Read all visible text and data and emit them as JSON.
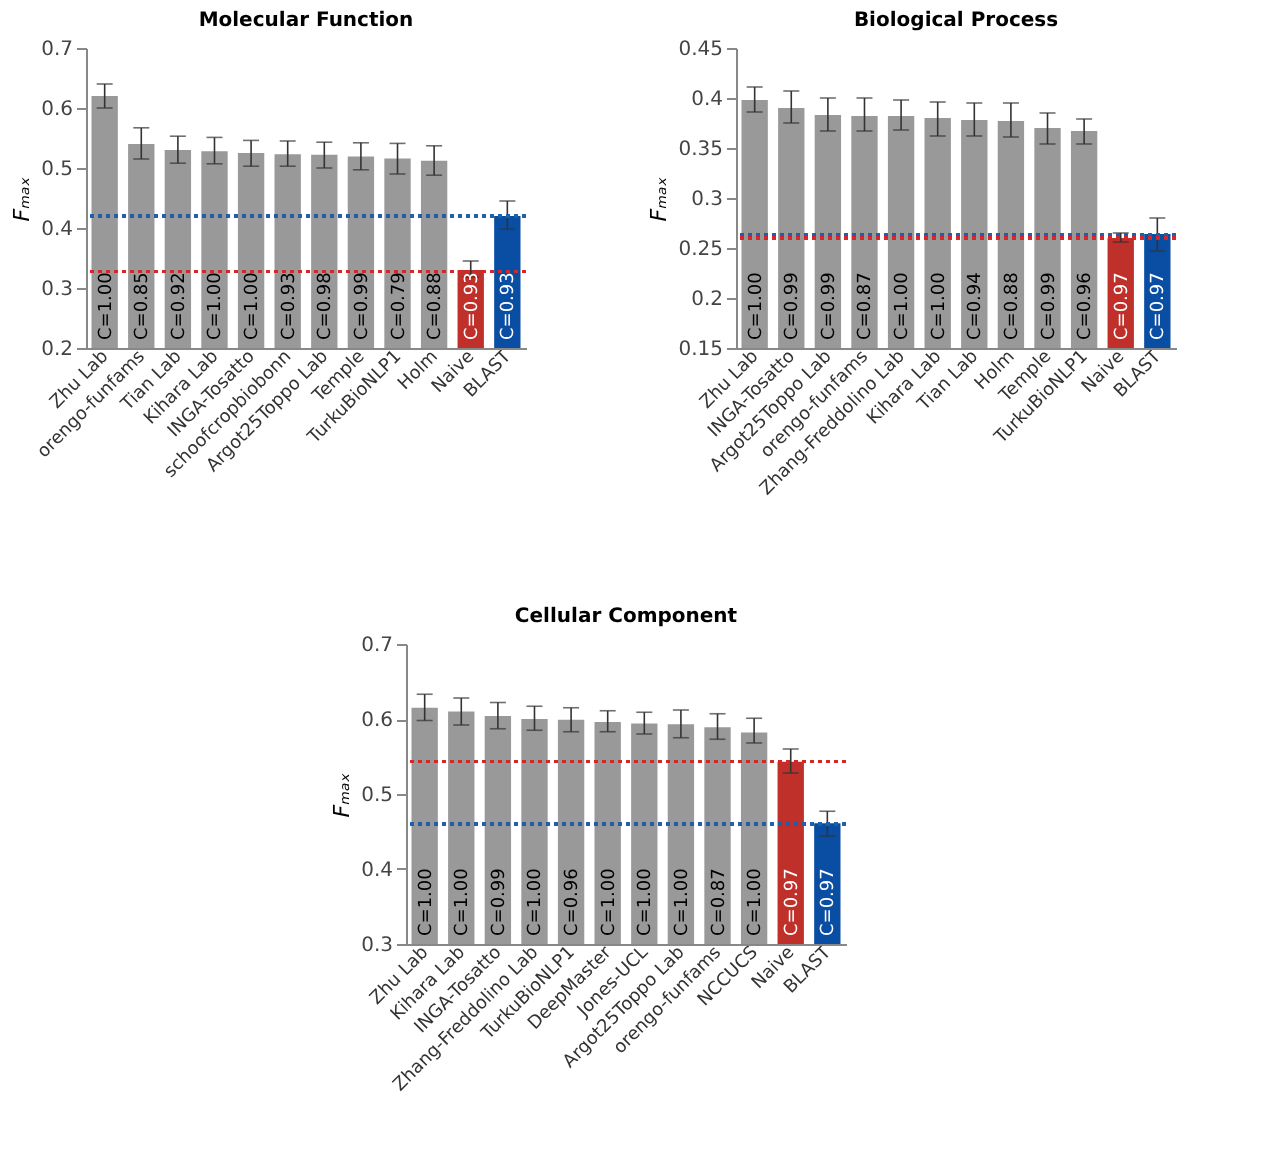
{
  "chart_data": [
    {
      "type": "bar",
      "title": "Molecular Function",
      "ylabel": "Fₘₐₓ",
      "categories": [
        "Zhu Lab",
        "orengo-funfams",
        "Tian Lab",
        "Kihara Lab",
        "INGA-Tosatto",
        "schoofcropbiobonn",
        "Argot25Toppo Lab",
        "Temple",
        "TurkuBioNLP1",
        "Holm",
        "Naive",
        "BLAST"
      ],
      "values": [
        0.62,
        0.54,
        0.53,
        0.528,
        0.525,
        0.523,
        0.522,
        0.519,
        0.516,
        0.512,
        0.33,
        0.42
      ],
      "errors": [
        [
          0.6,
          0.64
        ],
        [
          0.515,
          0.567
        ],
        [
          0.508,
          0.553
        ],
        [
          0.507,
          0.551
        ],
        [
          0.503,
          0.546
        ],
        [
          0.503,
          0.545
        ],
        [
          0.5,
          0.543
        ],
        [
          0.497,
          0.542
        ],
        [
          0.49,
          0.541
        ],
        [
          0.488,
          0.537
        ],
        [
          0.318,
          0.345
        ],
        [
          0.398,
          0.445
        ]
      ],
      "colors": [
        "#999999",
        "#999999",
        "#999999",
        "#999999",
        "#999999",
        "#999999",
        "#999999",
        "#999999",
        "#999999",
        "#999999",
        "#c0302b",
        "#0a4ea3"
      ],
      "annotations": [
        "C=1.00",
        "C=0.85",
        "C=0.92",
        "C=1.00",
        "C=1.00",
        "C=0.93",
        "C=0.98",
        "C=0.99",
        "C=0.79",
        "C=0.88",
        "C=0.93",
        "C=0.93"
      ],
      "ylim": [
        0.2,
        0.7
      ],
      "yticks": [
        0.2,
        0.3,
        0.4,
        0.5,
        0.6,
        0.7
      ],
      "ref_lines": [
        {
          "axis": "y",
          "value": 0.42,
          "color": "#1f5fa8",
          "line_style": "dotted"
        },
        {
          "axis": "y",
          "value": 0.328,
          "color": "#d62728",
          "line_style": "dotted"
        }
      ]
    },
    {
      "type": "bar",
      "title": "Biological Process",
      "ylabel": "Fₘₐₓ",
      "categories": [
        "Zhu Lab",
        "INGA-Tosatto",
        "Argot25Toppo Lab",
        "orengo-funfams",
        "Zhang-Freddolino Lab",
        "Kihara Lab",
        "Tian Lab",
        "Holm",
        "Temple",
        "TurkuBioNLP1",
        "Naive",
        "BLAST"
      ],
      "values": [
        0.398,
        0.39,
        0.383,
        0.382,
        0.382,
        0.38,
        0.378,
        0.377,
        0.37,
        0.367,
        0.26,
        0.264
      ],
      "errors": [
        [
          0.386,
          0.411
        ],
        [
          0.375,
          0.407
        ],
        [
          0.367,
          0.4
        ],
        [
          0.367,
          0.4
        ],
        [
          0.368,
          0.398
        ],
        [
          0.362,
          0.396
        ],
        [
          0.362,
          0.395
        ],
        [
          0.361,
          0.395
        ],
        [
          0.354,
          0.385
        ],
        [
          0.354,
          0.379
        ],
        [
          0.256,
          0.265
        ],
        [
          0.247,
          0.28
        ]
      ],
      "colors": [
        "#999999",
        "#999999",
        "#999999",
        "#999999",
        "#999999",
        "#999999",
        "#999999",
        "#999999",
        "#999999",
        "#999999",
        "#c0302b",
        "#0a4ea3"
      ],
      "annotations": [
        "C=1.00",
        "C=0.99",
        "C=0.99",
        "C=0.87",
        "C=1.00",
        "C=1.00",
        "C=0.94",
        "C=0.88",
        "C=0.99",
        "C=0.96",
        "C=0.97",
        "C=0.97"
      ],
      "ylim": [
        0.15,
        0.45
      ],
      "yticks": [
        0.15,
        0.2,
        0.25,
        0.3,
        0.35,
        0.4,
        0.45
      ],
      "ref_lines": [
        {
          "axis": "y",
          "value": 0.263,
          "color": "#1f5fa8",
          "line_style": "dotted"
        },
        {
          "axis": "y",
          "value": 0.26,
          "color": "#d62728",
          "line_style": "dotted"
        }
      ]
    },
    {
      "type": "bar",
      "title": "Cellular Component",
      "ylabel": "Fₘₐₓ",
      "categories": [
        "Zhu Lab",
        "Kihara Lab",
        "INGA-Tosatto",
        "Zhang-Freddolino Lab",
        "TurkuBioNLP1",
        "DeepMaster",
        "Jones-UCL",
        "Argot25Toppo Lab",
        "orengo-funfams",
        "NCCUCS",
        "Naive",
        "BLAST"
      ],
      "values": [
        0.615,
        0.61,
        0.604,
        0.6,
        0.599,
        0.596,
        0.594,
        0.593,
        0.589,
        0.582,
        0.543,
        0.461
      ],
      "errors": [
        [
          0.598,
          0.633
        ],
        [
          0.592,
          0.628
        ],
        [
          0.587,
          0.622
        ],
        [
          0.585,
          0.617
        ],
        [
          0.583,
          0.615
        ],
        [
          0.583,
          0.611
        ],
        [
          0.58,
          0.609
        ],
        [
          0.575,
          0.612
        ],
        [
          0.573,
          0.607
        ],
        [
          0.568,
          0.601
        ],
        [
          0.528,
          0.56
        ],
        [
          0.444,
          0.477
        ]
      ],
      "colors": [
        "#999999",
        "#999999",
        "#999999",
        "#999999",
        "#999999",
        "#999999",
        "#999999",
        "#999999",
        "#999999",
        "#999999",
        "#c0302b",
        "#0a4ea3"
      ],
      "annotations": [
        "C=1.00",
        "C=1.00",
        "C=0.99",
        "C=1.00",
        "C=0.96",
        "C=1.00",
        "C=1.00",
        "C=1.00",
        "C=0.87",
        "C=1.00",
        "C=0.97",
        "C=0.97"
      ],
      "ylim": [
        0.3,
        0.7
      ],
      "yticks": [
        0.3,
        0.4,
        0.5,
        0.6,
        0.7
      ],
      "ref_lines": [
        {
          "axis": "y",
          "value": 0.543,
          "color": "#d62728",
          "line_style": "dotted"
        },
        {
          "axis": "y",
          "value": 0.46,
          "color": "#1f5fa8",
          "line_style": "dotted"
        }
      ]
    }
  ]
}
